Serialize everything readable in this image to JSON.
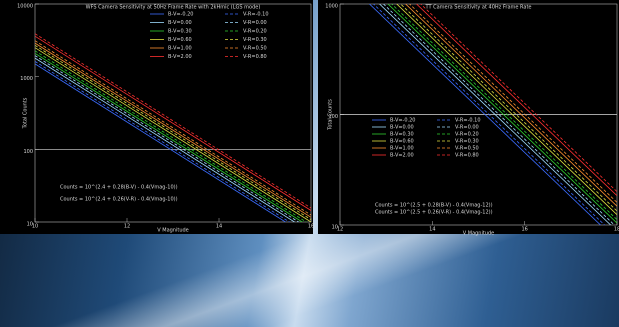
{
  "chart_data": [
    {
      "type": "line",
      "title": "WFS Camera Sensitivity at 50Hz Frame Rate with 2kHmic (LGS mode)",
      "x_label": "V Magnitude",
      "y_label": "Total Counts",
      "log_y": true,
      "xlim": [
        10,
        16
      ],
      "xticks": [
        10,
        12,
        14,
        16
      ],
      "ylim": [
        10,
        10000
      ],
      "yticks": [
        10,
        100,
        1000,
        10000
      ],
      "reference_line": 100,
      "x": [
        10,
        16
      ],
      "series": [
        {
          "name": "B-V=-0.20",
          "color": "#3b6cff",
          "style": "solid",
          "values": [
            1500,
            6
          ]
        },
        {
          "name": "B-V=0.00",
          "color": "#9fdcff",
          "style": "solid",
          "values": [
            1800,
            7.2
          ]
        },
        {
          "name": "B-V=0.30",
          "color": "#30d030",
          "style": "solid",
          "values": [
            2100,
            8.4
          ]
        },
        {
          "name": "B-V=0.60",
          "color": "#e0e040",
          "style": "solid",
          "values": [
            2500,
            10
          ]
        },
        {
          "name": "B-V=1.00",
          "color": "#ff9030",
          "style": "solid",
          "values": [
            2900,
            11.6
          ]
        },
        {
          "name": "B-V=2.00",
          "color": "#ff3030",
          "style": "solid",
          "values": [
            3600,
            14.4
          ]
        },
        {
          "name": "V-R=-0.10",
          "color": "#3b6cff",
          "style": "dashed",
          "values": [
            1620,
            6.5
          ]
        },
        {
          "name": "V-R=0.00",
          "color": "#9fdcff",
          "style": "dashed",
          "values": [
            1950,
            7.8
          ]
        },
        {
          "name": "V-R=0.20",
          "color": "#30d030",
          "style": "dashed",
          "values": [
            2270,
            9.1
          ]
        },
        {
          "name": "V-R=0.30",
          "color": "#e0e040",
          "style": "dashed",
          "values": [
            2700,
            10.8
          ]
        },
        {
          "name": "V-R=0.50",
          "color": "#ff9030",
          "style": "dashed",
          "values": [
            3130,
            12.5
          ]
        },
        {
          "name": "V-R=0.80",
          "color": "#ff3030",
          "style": "dashed",
          "values": [
            3900,
            15.6
          ]
        }
      ],
      "annotations": [
        "Counts = 10^(2.4 + 0.28(B-V) - 0.4(Vmag-10))",
        "Counts = 10^(2.4 + 0.26(V-R) - 0.4(Vmag-10))"
      ]
    },
    {
      "type": "line",
      "title": "TT Camera Sensitivity at 40Hz Frame Rate",
      "x_label": "V Magnitude",
      "y_label": "Total Counts",
      "log_y": true,
      "xlim": [
        12,
        18
      ],
      "xticks": [
        12,
        14,
        16,
        18
      ],
      "ylim": [
        10,
        1000
      ],
      "yticks": [
        10,
        100,
        1000
      ],
      "reference_line": 100,
      "x": [
        12,
        18
      ],
      "series": [
        {
          "name": "B-V=-0.20",
          "color": "#3b6cff",
          "style": "solid",
          "values": [
            1800,
            7.2
          ]
        },
        {
          "name": "B-V=0.00",
          "color": "#9fdcff",
          "style": "solid",
          "values": [
            2200,
            8.8
          ]
        },
        {
          "name": "B-V=0.30",
          "color": "#30d030",
          "style": "solid",
          "values": [
            2600,
            10.4
          ]
        },
        {
          "name": "B-V=0.60",
          "color": "#e0e040",
          "style": "solid",
          "values": [
            3100,
            12.4
          ]
        },
        {
          "name": "B-V=1.00",
          "color": "#ff9030",
          "style": "solid",
          "values": [
            3700,
            14.8
          ]
        },
        {
          "name": "B-V=2.00",
          "color": "#ff3030",
          "style": "solid",
          "values": [
            4600,
            18.4
          ]
        },
        {
          "name": "V-R=-0.10",
          "color": "#3b6cff",
          "style": "dashed",
          "values": [
            1950,
            7.8
          ]
        },
        {
          "name": "V-R=0.00",
          "color": "#9fdcff",
          "style": "dashed",
          "values": [
            2380,
            9.5
          ]
        },
        {
          "name": "V-R=0.20",
          "color": "#30d030",
          "style": "dashed",
          "values": [
            2800,
            11.2
          ]
        },
        {
          "name": "V-R=0.30",
          "color": "#e0e040",
          "style": "dashed",
          "values": [
            3350,
            13.4
          ]
        },
        {
          "name": "V-R=0.50",
          "color": "#ff9030",
          "style": "dashed",
          "values": [
            4000,
            16
          ]
        },
        {
          "name": "V-R=0.80",
          "color": "#ff3030",
          "style": "dashed",
          "values": [
            5000,
            20
          ]
        }
      ],
      "annotations": [
        "Counts = 10^(2.5 + 0.28(B-V) - 0.4(Vmag-12))",
        "Counts = 10^(2.5 + 0.26(V-R) - 0.4(Vmag-12))"
      ]
    }
  ]
}
